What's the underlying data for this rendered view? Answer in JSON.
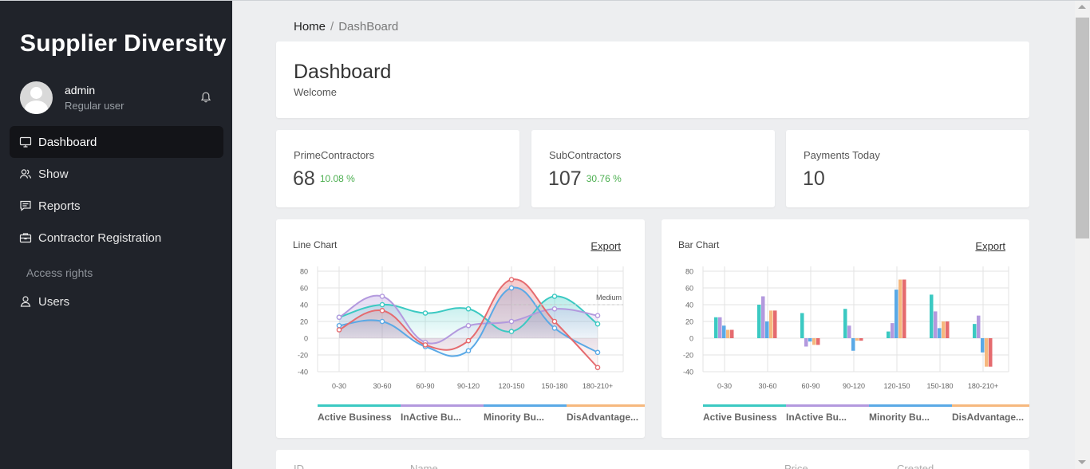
{
  "sidebar": {
    "brand": "Supplier Diversity",
    "user": {
      "name": "admin",
      "role": "Regular user"
    },
    "items": [
      {
        "label": "Dashboard",
        "icon": "monitor-icon",
        "active": true
      },
      {
        "label": "Show",
        "icon": "users-icon"
      },
      {
        "label": "Reports",
        "icon": "message-icon"
      },
      {
        "label": "Contractor Registration",
        "icon": "briefcase-icon"
      }
    ],
    "section_label": "Access rights",
    "section_items": [
      {
        "label": "Users",
        "icon": "user-icon"
      }
    ]
  },
  "breadcrumb": {
    "home": "Home",
    "separator": "/",
    "current": "DashBoard"
  },
  "header": {
    "title": "Dashboard",
    "subtitle": "Welcome"
  },
  "stats": [
    {
      "label": "PrimeContractors",
      "value": "68",
      "pct": "10.08 %"
    },
    {
      "label": "SubContractors",
      "value": "107",
      "pct": "30.76 %"
    },
    {
      "label": "Payments Today",
      "value": "10",
      "pct": ""
    }
  ],
  "colors": {
    "active_business": "#3bc9c2",
    "inactive_business": "#b399de",
    "minority_business": "#5aa9e6",
    "disadvantaged_business": "#f6b87e",
    "extra_series": "#e56b6f",
    "sidebar_bg": "#20232a"
  },
  "line_card": {
    "title": "Line Chart",
    "export": "Export",
    "annotation": "Medium"
  },
  "bar_card": {
    "title": "Bar Chart",
    "export": "Export"
  },
  "legend_labels": [
    "Active Business",
    "InActive Bu...",
    "Minority Bu...",
    "DisAdvantage..."
  ],
  "chart_data": [
    {
      "type": "line",
      "title": "Line Chart",
      "categories": [
        "0-30",
        "30-60",
        "60-90",
        "90-120",
        "120-150",
        "150-180",
        "180-210+"
      ],
      "ylim": [
        -40,
        80
      ],
      "yticks": [
        80,
        60,
        40,
        20,
        0,
        -20,
        -40
      ],
      "grid": true,
      "legend_position": "bottom",
      "series": [
        {
          "name": "Active Business",
          "color": "#3bc9c2",
          "values": [
            25,
            40,
            30,
            35,
            8,
            50,
            17
          ]
        },
        {
          "name": "InActive Business",
          "color": "#b399de",
          "values": [
            25,
            50,
            -5,
            15,
            20,
            35,
            27
          ]
        },
        {
          "name": "Minority Business",
          "color": "#5aa9e6",
          "values": [
            15,
            20,
            -10,
            -15,
            60,
            12,
            -17
          ]
        },
        {
          "color": "#e56b6f",
          "values": [
            10,
            33,
            -8,
            -3,
            70,
            20,
            -35
          ]
        }
      ]
    },
    {
      "type": "bar",
      "title": "Bar Chart",
      "categories": [
        "0-30",
        "30-60",
        "60-90",
        "90-120",
        "120-150",
        "150-180",
        "180-210+"
      ],
      "ylim": [
        -40,
        80
      ],
      "yticks": [
        80,
        60,
        40,
        20,
        0,
        -20,
        -40
      ],
      "grid": true,
      "legend_position": "bottom",
      "series": [
        {
          "name": "Active Business",
          "color": "#3bc9c2",
          "values": [
            25,
            40,
            30,
            35,
            8,
            52,
            17
          ]
        },
        {
          "name": "InActive Business",
          "color": "#b399de",
          "values": [
            25,
            50,
            -10,
            15,
            18,
            32,
            27
          ]
        },
        {
          "name": "Minority Business",
          "color": "#5aa9e6",
          "values": [
            15,
            20,
            -4,
            -15,
            58,
            12,
            -17
          ]
        },
        {
          "name": "DisAdvantaged Business",
          "color": "#f6b87e",
          "values": [
            10,
            33,
            -8,
            -3,
            70,
            20,
            -34
          ]
        },
        {
          "color": "#e56b6f",
          "values": [
            10,
            33,
            -8,
            -3,
            70,
            20,
            -34
          ]
        }
      ]
    }
  ],
  "table": {
    "headers": [
      "ID",
      "Name",
      "Price",
      "Created"
    ]
  }
}
